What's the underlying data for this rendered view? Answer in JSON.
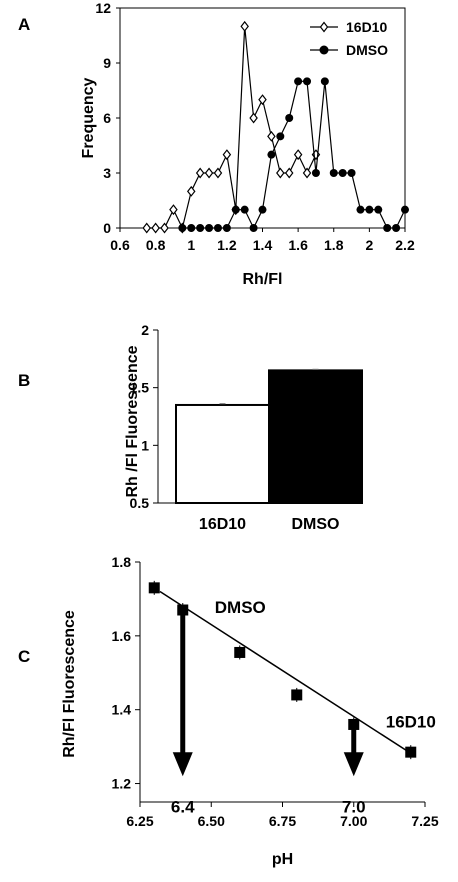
{
  "chart_data": [
    {
      "panel": "A",
      "type": "line",
      "xlabel": "Rh/Fl",
      "ylabel": "Frequency",
      "xlim": [
        0.6,
        2.2
      ],
      "ylim": [
        0,
        12
      ],
      "x_ticks": [
        "0.6",
        "0.8",
        "1",
        "1.2",
        "1.4",
        "1.6",
        "1.8",
        "2",
        "2.2"
      ],
      "y_ticks": [
        "0",
        "3",
        "6",
        "9",
        "12"
      ],
      "legend_position": "top-right",
      "series": [
        {
          "name": "16D10",
          "marker": "open-diamond",
          "x": [
            0.75,
            0.8,
            0.85,
            0.9,
            0.95,
            1.0,
            1.05,
            1.1,
            1.15,
            1.2,
            1.25,
            1.3,
            1.35,
            1.4,
            1.45,
            1.5,
            1.55,
            1.6,
            1.65,
            1.7
          ],
          "y": [
            0,
            0,
            0,
            1,
            0,
            2,
            3,
            3,
            3,
            4,
            1,
            11,
            6,
            7,
            5,
            3,
            3,
            4,
            3,
            4
          ]
        },
        {
          "name": "DMSO",
          "marker": "filled-circle",
          "x": [
            0.95,
            1.0,
            1.05,
            1.1,
            1.15,
            1.2,
            1.25,
            1.3,
            1.35,
            1.4,
            1.45,
            1.5,
            1.55,
            1.6,
            1.65,
            1.7,
            1.75,
            1.8,
            1.85,
            1.9,
            1.95,
            2.0,
            2.05,
            2.1,
            2.15,
            2.2
          ],
          "y": [
            0,
            0,
            0,
            0,
            0,
            0,
            1,
            1,
            0,
            1,
            4,
            5,
            6,
            8,
            8,
            3,
            8,
            3,
            3,
            3,
            1,
            1,
            1,
            0,
            0,
            1
          ]
        }
      ]
    },
    {
      "panel": "B",
      "type": "bar",
      "ylabel": "Rh /Fl Fluorescence",
      "categories": [
        "16D10",
        "DMSO"
      ],
      "values": [
        1.35,
        1.65
      ],
      "errors": [
        0.01,
        0.01
      ],
      "bar_colors": [
        "#ffffff",
        "#000000"
      ],
      "ylim": [
        0.5,
        2
      ],
      "y_ticks": [
        "0.5",
        "1",
        "1.5",
        "2"
      ]
    },
    {
      "panel": "C",
      "type": "scatter",
      "xlabel": "pH",
      "ylabel": "Rh/Fl Fluorescence",
      "xlim": [
        6.25,
        7.25
      ],
      "ylim": [
        1.15,
        1.8
      ],
      "x_ticks": [
        "6.25",
        "6.50",
        "6.75",
        "7.00",
        "7.25"
      ],
      "y_ticks": [
        "1.2",
        "1.4",
        "1.6",
        "1.8"
      ],
      "points": {
        "x": [
          6.3,
          6.4,
          6.6,
          6.8,
          7.0,
          7.2
        ],
        "y": [
          1.73,
          1.67,
          1.555,
          1.44,
          1.36,
          1.285
        ]
      },
      "fit_line": {
        "x": [
          6.32,
          7.2
        ],
        "y": [
          1.72,
          1.282
        ]
      },
      "annotations": [
        {
          "label": "DMSO",
          "x": 6.4,
          "y": 1.675,
          "arrow_to": "6.4"
        },
        {
          "label": "16D10",
          "x": 7.0,
          "y": 1.365,
          "arrow_to": "7.0"
        }
      ]
    }
  ]
}
